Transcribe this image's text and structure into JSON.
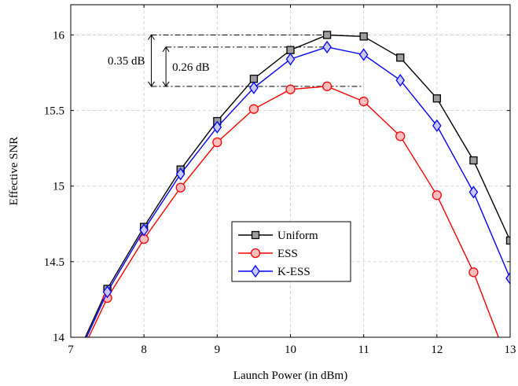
{
  "chart_data": {
    "type": "line",
    "xlabel": "Launch Power (in dBm)",
    "ylabel": "Effective SNR",
    "xlim": [
      7,
      13
    ],
    "ylim": [
      14,
      16.2
    ],
    "xticks": [
      7,
      8,
      9,
      10,
      11,
      12,
      13
    ],
    "yticks": [
      14,
      14.5,
      15,
      15.5,
      16
    ],
    "xtick_labels": [
      "7",
      "8",
      "9",
      "10",
      "11",
      "12",
      "13"
    ],
    "ytick_labels": [
      "14",
      "14.5",
      "15",
      "15.5",
      "16"
    ],
    "grid": true,
    "legend_position": "center-right",
    "series": [
      {
        "name": "Uniform",
        "color": "#000000",
        "fill": "#9e9e9e",
        "marker": "square",
        "x": [
          7,
          7.5,
          8,
          8.5,
          9,
          9.5,
          10,
          10.5,
          11,
          11.5,
          12,
          12.5,
          13
        ],
        "y": [
          13.79,
          14.32,
          14.73,
          15.11,
          15.43,
          15.71,
          15.9,
          16.0,
          15.99,
          15.85,
          15.58,
          15.17,
          14.64
        ]
      },
      {
        "name": "ESS",
        "color": "#ff0000",
        "fill": "#ffbdbd",
        "marker": "circle",
        "x": [
          7,
          7.5,
          8,
          8.5,
          9,
          9.5,
          10,
          10.5,
          11,
          11.5,
          12,
          12.5,
          13
        ],
        "y": [
          13.75,
          14.26,
          14.65,
          14.99,
          15.29,
          15.51,
          15.64,
          15.66,
          15.56,
          15.33,
          14.94,
          14.43,
          13.8
        ]
      },
      {
        "name": "K-ESS",
        "color": "#0000ff",
        "fill": "#c8c8ff",
        "marker": "diamond",
        "x": [
          7,
          7.5,
          8,
          8.5,
          9,
          9.5,
          10,
          10.5,
          11,
          11.5,
          12,
          12.5,
          13
        ],
        "y": [
          13.77,
          14.3,
          14.71,
          15.08,
          15.39,
          15.65,
          15.84,
          15.92,
          15.87,
          15.7,
          15.4,
          14.96,
          14.39
        ]
      }
    ],
    "reference_lines": [
      {
        "y": 16.0,
        "x_from": 8.1,
        "x_to": 10.5
      },
      {
        "y": 15.92,
        "x_from": 8.3,
        "x_to": 10.5
      },
      {
        "y": 15.66,
        "x_from": 8.1,
        "x_to": 11.0
      }
    ],
    "annotations": [
      {
        "text": "0.35 dB",
        "y_from": 16.0,
        "y_to": 15.66,
        "x": 8.1
      },
      {
        "text": "0.26 dB",
        "y_from": 15.92,
        "y_to": 15.66,
        "x": 8.3
      }
    ]
  }
}
